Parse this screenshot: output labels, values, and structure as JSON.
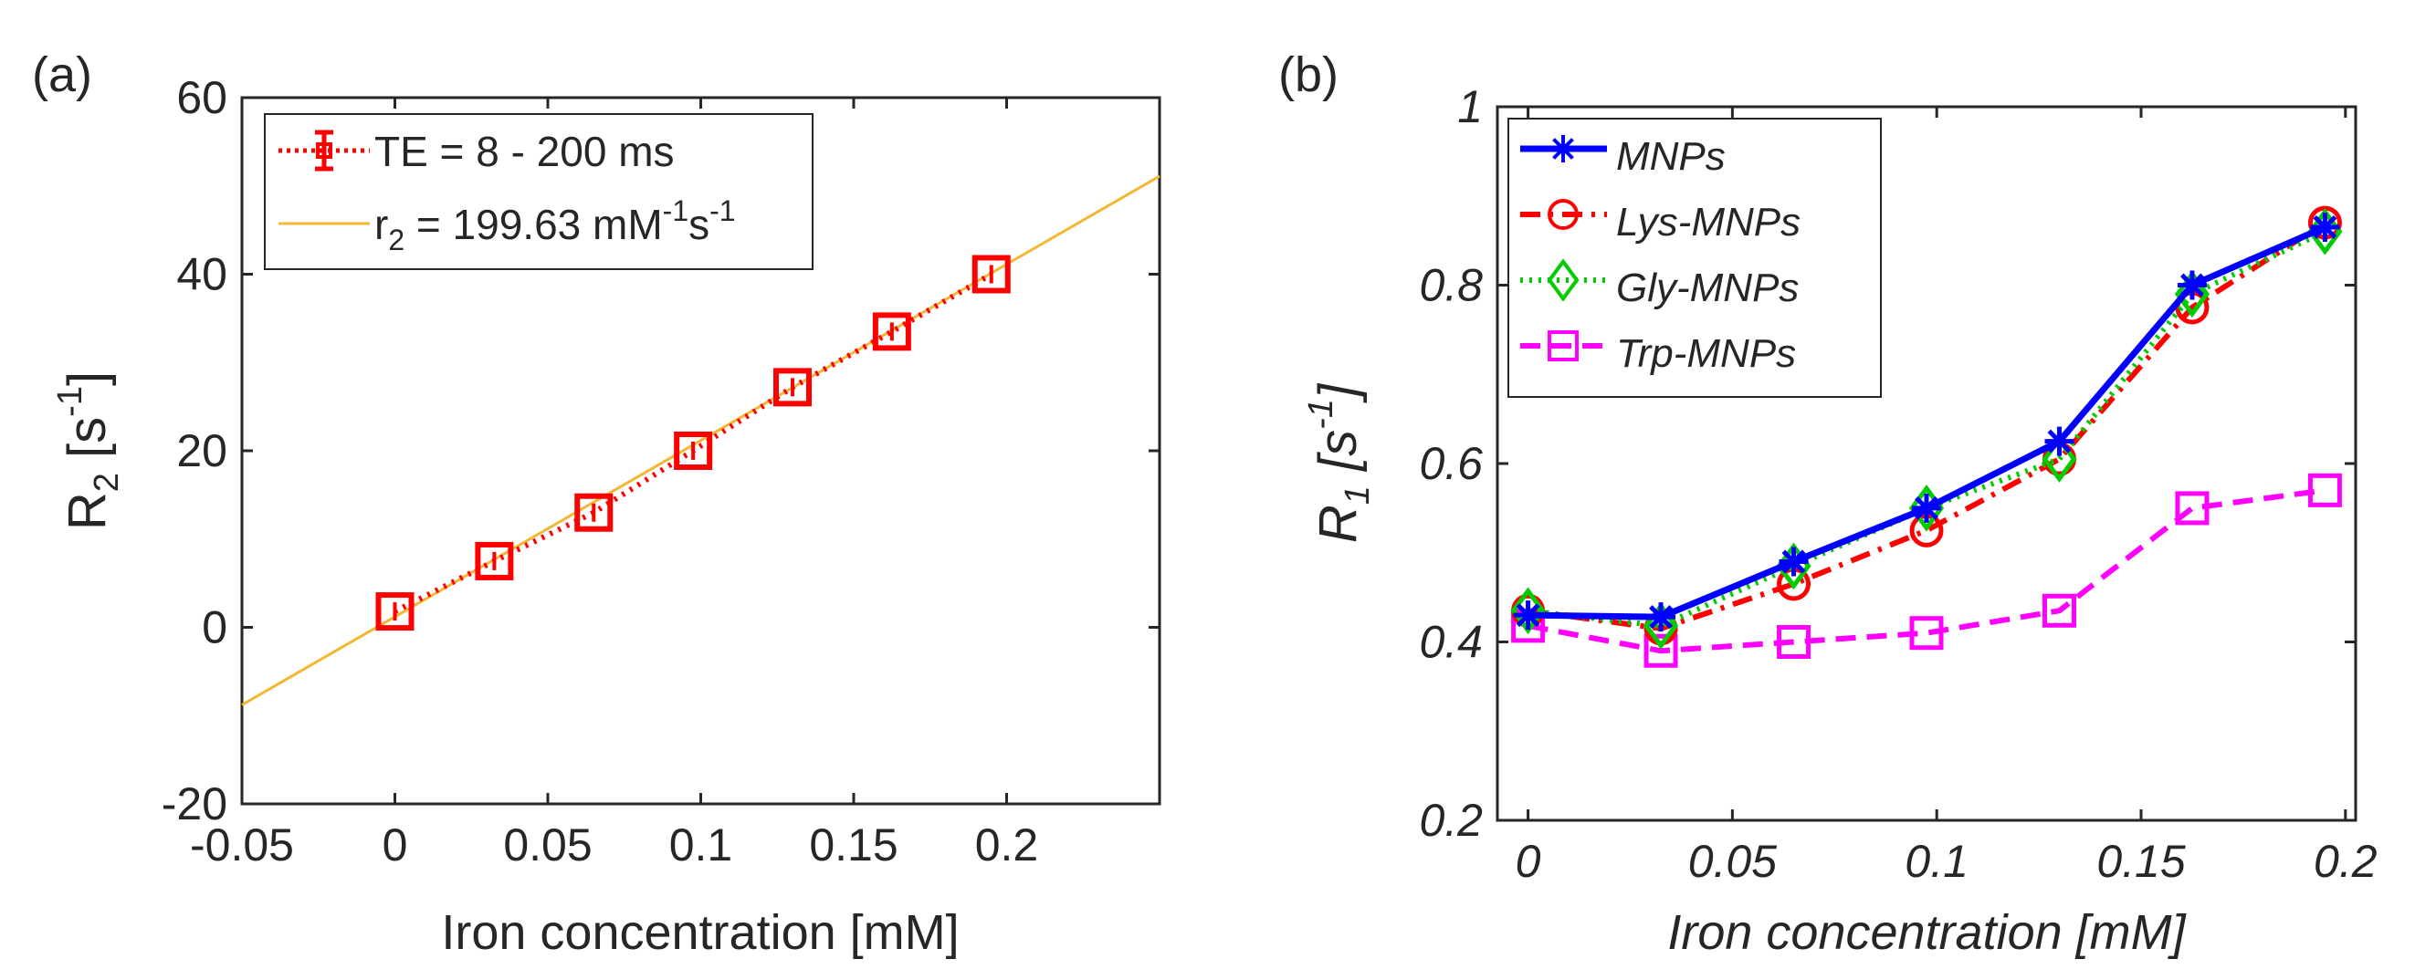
{
  "chart_data": [
    {
      "panel_label": "(a)",
      "type": "scatter",
      "title": "",
      "xlabel": "Iron concentration [mM]",
      "ylabel": {
        "main": "R",
        "sub": "2",
        "unit_open": " [s",
        "unit_sup": "-1",
        "unit_close": "]"
      },
      "xlim": [
        -0.05,
        0.25
      ],
      "ylim": [
        -20,
        60
      ],
      "xticks": [
        -0.05,
        0,
        0.05,
        0.1,
        0.15,
        0.2
      ],
      "xtick_labels": [
        "-0.05",
        "0",
        "0.05",
        "0.1",
        "0.15",
        "0.2"
      ],
      "yticks": [
        -20,
        0,
        20,
        40,
        60
      ],
      "ytick_labels": [
        "-20",
        "0",
        "20",
        "40",
        "60"
      ],
      "series": [
        {
          "name": "TE = 8 - 200 ms",
          "color": "#ff0000",
          "style": "dotted",
          "marker": "square-errorbar",
          "x": [
            0,
            0.0325,
            0.065,
            0.0975,
            0.13,
            0.1625,
            0.195
          ],
          "y": [
            1.8,
            7.5,
            13.0,
            20.0,
            27.2,
            33.5,
            40.0
          ]
        }
      ],
      "fit": {
        "name_parts": {
          "a": "r",
          "a_sub": "2",
          "b": " = 199.63 mM",
          "b_sup1": "-1",
          "c": "s",
          "c_sup": "-1"
        },
        "color": "#f5b731",
        "slope": 199.63,
        "intercept": 1.2
      },
      "legend_position": "top-left"
    },
    {
      "panel_label": "(b)",
      "type": "line",
      "title": "",
      "xlabel": "Iron concentration [mM]",
      "ylabel": {
        "main": "R",
        "sub": "1",
        "unit_open": " [s",
        "unit_sup": "-1",
        "unit_close": "]"
      },
      "xlim": [
        -0.0075,
        0.2025
      ],
      "ylim": [
        0.2,
        1.0
      ],
      "xticks": [
        0,
        0.05,
        0.1,
        0.15,
        0.2
      ],
      "xtick_labels": [
        "0",
        "0.05",
        "0.1",
        "0.15",
        "0.2"
      ],
      "yticks": [
        0.2,
        0.4,
        0.6,
        0.8,
        1.0
      ],
      "ytick_labels": [
        "0.2",
        "0.4",
        "0.6",
        "0.8",
        "1"
      ],
      "x": [
        0,
        0.0325,
        0.065,
        0.0975,
        0.13,
        0.1625,
        0.195
      ],
      "series": [
        {
          "name": "MNPs",
          "color": "#0000ff",
          "style": "solid",
          "marker": "star",
          "values": [
            0.43,
            0.428,
            0.49,
            0.55,
            0.625,
            0.8,
            0.865
          ]
        },
        {
          "name": "Lys-MNPs",
          "color": "#ff0000",
          "style": "dashdot",
          "marker": "circle",
          "values": [
            0.435,
            0.415,
            0.465,
            0.525,
            0.605,
            0.775,
            0.87
          ]
        },
        {
          "name": "Gly-MNPs",
          "color": "#00cc00",
          "style": "dotted",
          "marker": "diamond",
          "values": [
            0.435,
            0.418,
            0.485,
            0.55,
            0.605,
            0.79,
            0.86
          ]
        },
        {
          "name": "Trp-MNPs",
          "color": "#ff00ff",
          "style": "dashed",
          "marker": "square",
          "values": [
            0.418,
            0.39,
            0.4,
            0.41,
            0.435,
            0.55,
            0.57
          ]
        }
      ],
      "legend_position": "top-left"
    }
  ]
}
